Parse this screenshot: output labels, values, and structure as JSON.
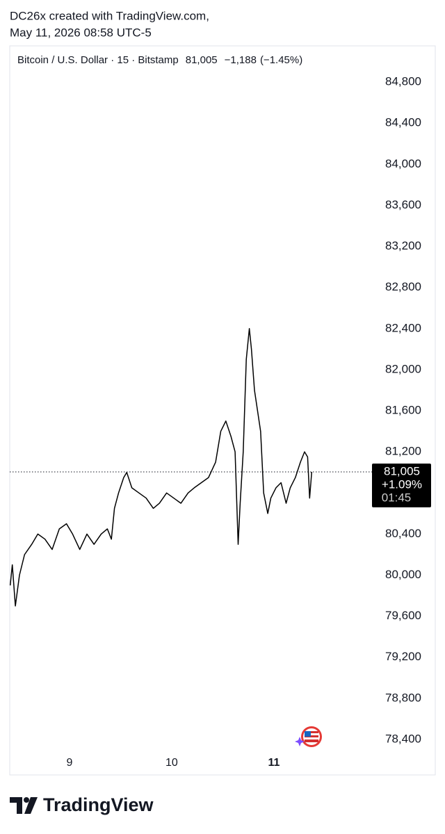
{
  "header": {
    "credit": "DC26x created with TradingView.com,",
    "timestamp": "May 11, 2026 08:58 UTC-5"
  },
  "chart_data": {
    "type": "line",
    "symbol": "Bitcoin / U.S. Dollar · 15 · Bitstamp",
    "last_price": {
      "value": 81005,
      "label": "81,005"
    },
    "change": "−1,188",
    "change_pct": "(−1.45%)",
    "tag_change": "+1.09%",
    "tag_timer": "01:45",
    "color": "#000000",
    "x": [
      8.42,
      8.44,
      8.47,
      8.51,
      8.56,
      8.63,
      8.69,
      8.76,
      8.83,
      8.9,
      8.97,
      9.03,
      9.1,
      9.17,
      9.24,
      9.31,
      9.37,
      9.41,
      9.44,
      9.48,
      9.53,
      9.56,
      9.61,
      9.68,
      9.75,
      9.82,
      9.88,
      9.95,
      10.02,
      10.09,
      10.16,
      10.22,
      10.29,
      10.36,
      10.43,
      10.48,
      10.53,
      10.58,
      10.62,
      10.65,
      10.67,
      10.7,
      10.73,
      10.76,
      10.78,
      10.81,
      10.84,
      10.87,
      10.9,
      10.94,
      10.97,
      11.02,
      11.07,
      11.12,
      11.16,
      11.21,
      11.26,
      11.3,
      11.33,
      11.35,
      11.37
    ],
    "values": [
      79900,
      80100,
      79700,
      80000,
      80200,
      80300,
      80400,
      80350,
      80250,
      80450,
      80500,
      80400,
      80250,
      80400,
      80300,
      80400,
      80450,
      80350,
      80650,
      80800,
      80950,
      81000,
      80850,
      80800,
      80750,
      80650,
      80700,
      80800,
      80750,
      80700,
      80800,
      80850,
      80900,
      80950,
      81100,
      81400,
      81500,
      81350,
      81200,
      80300,
      80700,
      81200,
      82100,
      82400,
      82200,
      81800,
      81600,
      81400,
      80800,
      80600,
      80750,
      80850,
      80900,
      80700,
      80850,
      80950,
      81100,
      81200,
      81150,
      80750,
      81005
    ],
    "xlim": [
      8.415,
      11.96
    ],
    "xticks": [
      9,
      10,
      11
    ],
    "ylim": [
      78258,
      85125
    ],
    "yticks": [
      {
        "value": 78400,
        "label": "78,400"
      },
      {
        "value": 78800,
        "label": "78,800"
      },
      {
        "value": 79200,
        "label": "79,200"
      },
      {
        "value": 79600,
        "label": "79,600"
      },
      {
        "value": 80000,
        "label": "80,000"
      },
      {
        "value": 80400,
        "label": "80,400"
      },
      {
        "value": 80800,
        "label": "80,800"
      },
      {
        "value": 81200,
        "label": "81,200"
      },
      {
        "value": 81600,
        "label": "81,600"
      },
      {
        "value": 82000,
        "label": "82,000"
      },
      {
        "value": 82400,
        "label": "82,400"
      },
      {
        "value": 82800,
        "label": "82,800"
      },
      {
        "value": 83200,
        "label": "83,200"
      },
      {
        "value": 83600,
        "label": "83,600"
      },
      {
        "value": 84000,
        "label": "84,000"
      },
      {
        "value": 84400,
        "label": "84,400"
      },
      {
        "value": 84800,
        "label": "84,800"
      }
    ]
  },
  "footer": {
    "brand": "TradingView"
  }
}
